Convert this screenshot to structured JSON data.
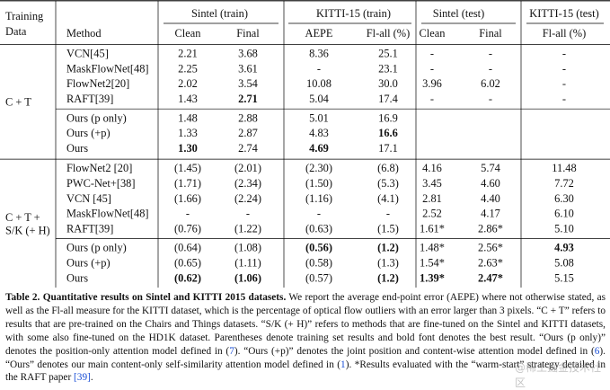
{
  "header": {
    "group_label_line1": "Training",
    "group_label_line2": "Data",
    "method_label": "Method",
    "spans": [
      "Sintel (train)",
      "KITTI-15 (train)",
      "Sintel (test)",
      "KITTI-15 (test)"
    ],
    "subcols": [
      "Clean",
      "Final",
      "AEPE",
      "Fl-all (%)",
      "Clean",
      "Final",
      "Fl-all (%)"
    ]
  },
  "sections": [
    {
      "label_lines": [
        "C + T"
      ],
      "groups": [
        [
          {
            "name": "VCN",
            "ref": "[45]",
            "cells": [
              "2.21",
              "3.68",
              "8.36",
              "25.1",
              "-",
              "-",
              "-"
            ],
            "bold": []
          },
          {
            "name": "MaskFlowNet",
            "ref": "[48]",
            "cells": [
              "2.25",
              "3.61",
              "-",
              "23.1",
              "-",
              "-",
              "-"
            ],
            "bold": []
          },
          {
            "name": "FlowNet2",
            "ref": "[20]",
            "cells": [
              "2.02",
              "3.54",
              "10.08",
              "30.0",
              "3.96",
              "6.02",
              "-"
            ],
            "bold": []
          },
          {
            "name": "RAFT",
            "ref": "[39]",
            "cells": [
              "1.43",
              "2.71",
              "5.04",
              "17.4",
              "-",
              "-",
              "-"
            ],
            "bold": [
              1
            ]
          }
        ],
        [
          {
            "name": "Ours (p only)",
            "ref": "",
            "cells": [
              "1.48",
              "2.88",
              "5.01",
              "16.9",
              "",
              "",
              ""
            ],
            "bold": []
          },
          {
            "name": "Ours (+p)",
            "ref": "",
            "cells": [
              "1.33",
              "2.87",
              "4.83",
              "16.6",
              "",
              "",
              ""
            ],
            "bold": [
              3
            ]
          },
          {
            "name": "Ours",
            "ref": "",
            "cells": [
              "1.30",
              "2.74",
              "4.69",
              "17.1",
              "",
              "",
              ""
            ],
            "bold": [
              0,
              2
            ]
          }
        ]
      ]
    },
    {
      "label_lines": [
        "C + T +",
        "S/K (+ H)"
      ],
      "groups": [
        [
          {
            "name": "FlowNet2 ",
            "ref": "[20]",
            "cells": [
              "(1.45)",
              "(2.01)",
              "(2.30)",
              "(6.8)",
              "4.16",
              "5.74",
              "11.48"
            ],
            "bold": []
          },
          {
            "name": "PWC-Net+",
            "ref": "[38]",
            "cells": [
              "(1.71)",
              "(2.34)",
              "(1.50)",
              "(5.3)",
              "3.45",
              "4.60",
              "7.72"
            ],
            "bold": []
          },
          {
            "name": "VCN ",
            "ref": "[45]",
            "cells": [
              "(1.66)",
              "(2.24)",
              "(1.16)",
              "(4.1)",
              "2.81",
              "4.40",
              "6.30"
            ],
            "bold": []
          },
          {
            "name": "MaskFlowNet",
            "ref": "[48]",
            "cells": [
              "-",
              "-",
              "-",
              "-",
              "2.52",
              "4.17",
              "6.10"
            ],
            "bold": []
          },
          {
            "name": "RAFT",
            "ref": "[39]",
            "cells": [
              "(0.76)",
              "(1.22)",
              "(0.63)",
              "(1.5)",
              "1.61*",
              "2.86*",
              "5.10"
            ],
            "bold": []
          }
        ],
        [
          {
            "name": "Ours (p only)",
            "ref": "",
            "cells": [
              "(0.64)",
              "(1.08)",
              "(0.56)",
              "(1.2)",
              "1.48*",
              "2.56*",
              "4.93"
            ],
            "bold": [
              2,
              3,
              6
            ]
          },
          {
            "name": "Ours (+p)",
            "ref": "",
            "cells": [
              "(0.65)",
              "(1.11)",
              "(0.58)",
              "(1.3)",
              "1.54*",
              "2.63*",
              "5.08"
            ],
            "bold": []
          },
          {
            "name": "Ours",
            "ref": "",
            "cells": [
              "(0.62)",
              "(1.06)",
              "(0.57)",
              "(1.2)",
              "1.39*",
              "2.47*",
              "5.15"
            ],
            "bold": [
              0,
              1,
              3,
              4,
              5
            ]
          }
        ]
      ]
    }
  ],
  "caption": {
    "label": "Table 2.",
    "title": "Quantitative results on Sintel and KITTI 2015 datasets.",
    "seg1": " We report the average end-point error (AEPE) where not otherwise stated, as well as the Fl-all measure for the KITTI dataset, which is the percentage of optical flow outliers with an error larger than 3 pixels. “C + T” refers to results that are pre-trained on the Chairs and Things datasets. “S/K (+ H)” refers to methods that are fine-tuned on the Sintel and KITTI datasets, with some also fine-tuned on the HD1K dataset. Parentheses denote training set results and bold font denotes the best result. “Ours (p only)” denotes the position-only attention model defined in (",
    "ref1": "7",
    "seg2": "). “Ours (+p)” denotes the joint position and content-wise attention model defined in (",
    "ref2": "6",
    "seg3": "). “Ours” denotes our main content-only self-similarity attention model defined in (",
    "ref3": "1",
    "seg4": "). *Results evaluated with the “warm-start” strategy detailed in the RAFT paper ",
    "ref4": "[39]",
    "seg5": "."
  },
  "watermark": "@稀土掘金技术社区"
}
